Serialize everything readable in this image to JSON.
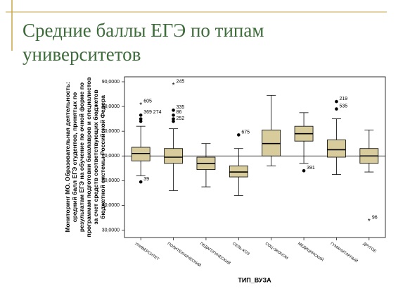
{
  "title": "Средние баллы ЕГЭ по типам университетов",
  "chart_data": {
    "type": "box",
    "y_label": "Мониторинг МО. Образовательная деятельность: средний балл ЕГЭ студентов, принятых по результатам ЕГЭ на обучение по очной форме по программам подготовки бакалавров и специалистов за счет средств соответствующих бюджетов бюджетной системы Российской Федера",
    "x_label": "ТИП_ВУЗА",
    "categories": [
      "УНИВЕРСИТЕТ",
      "ПОЛИТЕХНИЧЕСКИЙ",
      "ПЕДАГОГИЧЕСКИЙ",
      "СЕЛЬ-ХОЗ",
      "СОЦ-ЭКОНОМ",
      "МЕДИЦИНСКИЙ",
      "ГУМАНИТАРНЫЙ",
      "ДРУГОЕ"
    ],
    "min": [
      52,
      46,
      47.5,
      44,
      56,
      57,
      52.5,
      53.5
    ],
    "q1": [
      58,
      57,
      54.5,
      51.5,
      60,
      66,
      59.5,
      57
    ],
    "median": [
      61,
      59.5,
      57,
      53.5,
      65,
      69,
      62.5,
      60
    ],
    "q3": [
      63.5,
      63,
      59.5,
      56,
      70.5,
      72,
      66.5,
      63
    ],
    "max": [
      72,
      71,
      65,
      63,
      84.5,
      77.5,
      75,
      70.5
    ],
    "outliers": [
      [
        {
          "value": 81,
          "marker": "star",
          "label": "605"
        },
        {
          "value": 76.5,
          "marker": "circle",
          "label": "369 274"
        },
        {
          "value": 75,
          "marker": "circle"
        },
        {
          "value": 74,
          "marker": "circle"
        },
        {
          "value": 49.5,
          "marker": "circle",
          "label": "39"
        }
      ],
      [
        {
          "value": 89,
          "marker": "star",
          "label": "245"
        },
        {
          "value": 78.5,
          "marker": "circle",
          "label": "335"
        },
        {
          "value": 76.5,
          "marker": "circle",
          "label": "86"
        },
        {
          "value": 75,
          "marker": "circle"
        },
        {
          "value": 74,
          "marker": "circle",
          "label": "252"
        }
      ],
      [],
      [
        {
          "value": 68.5,
          "marker": "circle",
          "label": "675"
        }
      ],
      [],
      [
        {
          "value": 54,
          "marker": "circle",
          "label": "391"
        }
      ],
      [
        {
          "value": 82,
          "marker": "circle",
          "label": "219"
        },
        {
          "value": 79,
          "marker": "circle",
          "label": "535"
        }
      ],
      [
        {
          "value": 34,
          "marker": "star",
          "label": "96"
        }
      ]
    ],
    "reference_line": 60,
    "color": "#d8cc9c",
    "ylim": [
      27,
      92
    ],
    "yticks": [
      {
        "value": 30,
        "label": "30,0000"
      },
      {
        "value": 40,
        "label": "40,0000"
      },
      {
        "value": 50,
        "label": "50,0000"
      },
      {
        "value": 60,
        "label": "60,0000"
      },
      {
        "value": 70,
        "label": "70,0000"
      },
      {
        "value": 80,
        "label": "80,0000"
      },
      {
        "value": 90,
        "label": "90,0000"
      }
    ]
  }
}
